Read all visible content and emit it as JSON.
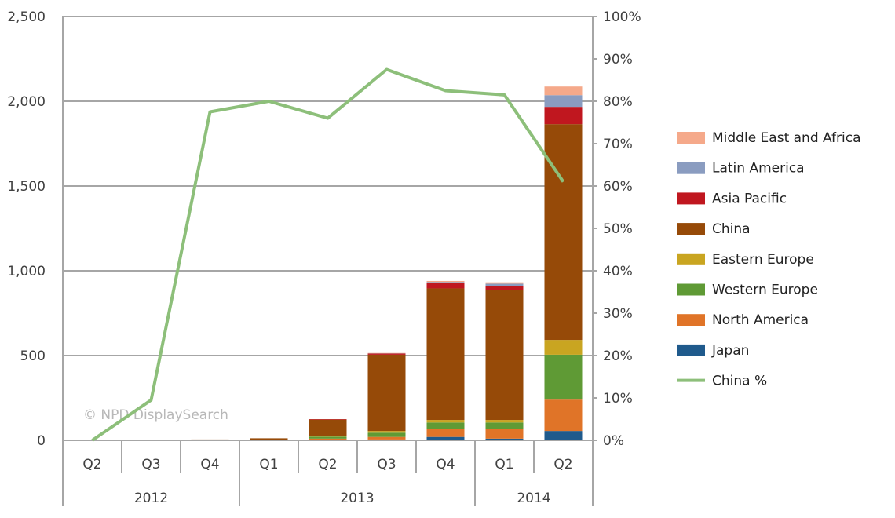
{
  "chart_data": {
    "type": "bar",
    "stacked": true,
    "title": "",
    "watermark": "© NPD DisplaySearch",
    "categories": [
      "Q2",
      "Q3",
      "Q4",
      "Q1",
      "Q2",
      "Q3",
      "Q4",
      "Q1",
      "Q2"
    ],
    "year_groups": [
      {
        "label": "2012",
        "count": 3
      },
      {
        "label": "2013",
        "count": 4
      },
      {
        "label": "2014",
        "count": 2
      }
    ],
    "ylim": [
      0,
      2500
    ],
    "y_ticks": [
      "0",
      "500",
      "1,000",
      "1,500",
      "2,000",
      "2,500"
    ],
    "y_tick_values": [
      0,
      500,
      1000,
      1500,
      2000,
      2500
    ],
    "y2lim": [
      0,
      100
    ],
    "y2_ticks": [
      "0%",
      "10%",
      "20%",
      "30%",
      "40%",
      "50%",
      "60%",
      "70%",
      "80%",
      "90%",
      "100%"
    ],
    "y2_tick_values": [
      0,
      10,
      20,
      30,
      40,
      50,
      60,
      70,
      80,
      90,
      100
    ],
    "grid": true,
    "legend_position": "right",
    "series": [
      {
        "name": "Japan",
        "color": "#1f5a8c",
        "values": [
          0,
          0,
          0,
          0,
          3,
          5,
          20,
          10,
          55
        ]
      },
      {
        "name": "North America",
        "color": "#e07428",
        "values": [
          0,
          0,
          1,
          1,
          7,
          15,
          45,
          55,
          185
        ]
      },
      {
        "name": "Western Europe",
        "color": "#5f9a35",
        "values": [
          0,
          0,
          0,
          1,
          12,
          25,
          40,
          40,
          265
        ]
      },
      {
        "name": "Eastern Europe",
        "color": "#c9a521",
        "values": [
          0,
          0,
          0,
          0,
          5,
          10,
          15,
          15,
          87
        ]
      },
      {
        "name": "China",
        "color": "#964a08",
        "values": [
          0,
          0.1,
          4,
          10,
          95,
          450,
          776,
          765,
          1273
        ]
      },
      {
        "name": "Asia Pacific",
        "color": "#c0171f",
        "values": [
          0,
          0,
          0,
          0,
          3,
          8,
          30,
          27,
          102
        ]
      },
      {
        "name": "Latin America",
        "color": "#8a9cc0",
        "values": [
          0,
          0,
          0,
          0,
          0,
          1,
          8,
          12,
          69
        ]
      },
      {
        "name": "Middle East and Africa",
        "color": "#f5a98a",
        "values": [
          0,
          0,
          0,
          0,
          0,
          1,
          6,
          8,
          51
        ]
      }
    ],
    "line_series": {
      "name": "China %",
      "color": "#8dbf7a",
      "axis": "right",
      "values": [
        0,
        9.5,
        77.5,
        80,
        76,
        87.5,
        82.5,
        81.5,
        61
      ]
    }
  }
}
